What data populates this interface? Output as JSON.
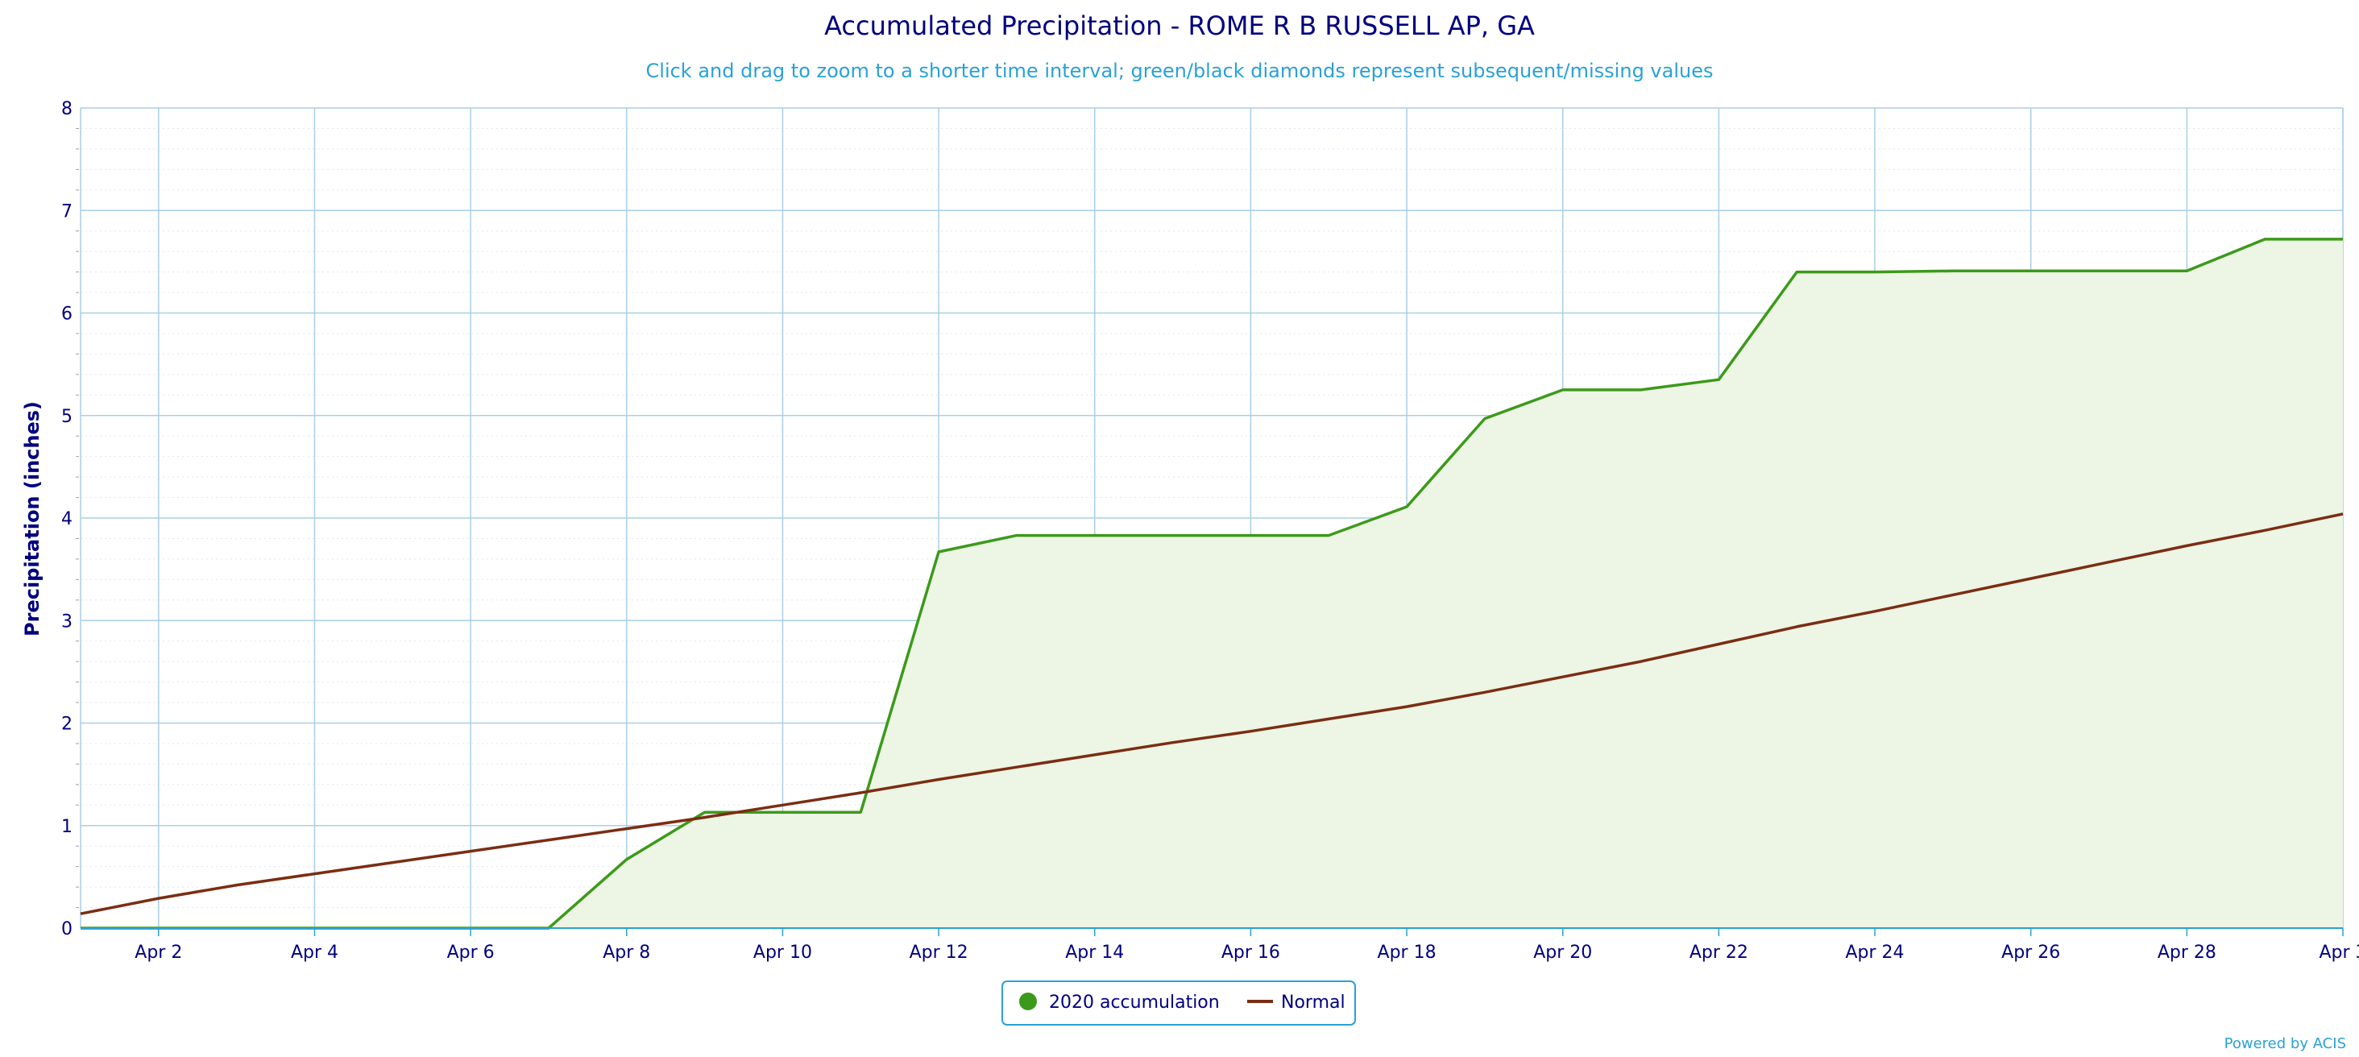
{
  "chart_data": {
    "type": "area",
    "title": "Accumulated Precipitation - ROME R B RUSSELL AP, GA",
    "subtitle": "Click and drag to zoom to a shorter time interval; green/black diamonds represent subsequent/missing values",
    "xlabel": "",
    "ylabel": "Precipitation (inches)",
    "ylim": [
      0,
      8
    ],
    "yticks": [
      "0",
      "1",
      "2",
      "3",
      "4",
      "5",
      "6",
      "7",
      "8"
    ],
    "xlim": [
      1,
      30
    ],
    "xticks": [
      {
        "day": 2,
        "label": "Apr 2"
      },
      {
        "day": 4,
        "label": "Apr 4"
      },
      {
        "day": 6,
        "label": "Apr 6"
      },
      {
        "day": 8,
        "label": "Apr 8"
      },
      {
        "day": 10,
        "label": "Apr 10"
      },
      {
        "day": 12,
        "label": "Apr 12"
      },
      {
        "day": 14,
        "label": "Apr 14"
      },
      {
        "day": 16,
        "label": "Apr 16"
      },
      {
        "day": 18,
        "label": "Apr 18"
      },
      {
        "day": 20,
        "label": "Apr 20"
      },
      {
        "day": 22,
        "label": "Apr 22"
      },
      {
        "day": 24,
        "label": "Apr 24"
      },
      {
        "day": 26,
        "label": "Apr 26"
      },
      {
        "day": 28,
        "label": "Apr 28"
      },
      {
        "day": 30,
        "label": "Apr 3"
      }
    ],
    "grid": true,
    "legend_position": "bottom-center",
    "series": [
      {
        "name": "2020 accumulation",
        "color": "#3c9a1a",
        "fill": "#edf5e5",
        "x": [
          1,
          2,
          3,
          4,
          5,
          6,
          7,
          8,
          9,
          10,
          11,
          12,
          13,
          14,
          15,
          16,
          17,
          18,
          19,
          20,
          21,
          22,
          23,
          24,
          25,
          26,
          27,
          28,
          29,
          30
        ],
        "values": [
          0,
          0,
          0,
          0,
          0,
          0,
          0,
          0.67,
          1.13,
          1.13,
          1.13,
          3.67,
          3.83,
          3.83,
          3.83,
          3.83,
          3.83,
          4.11,
          4.97,
          5.25,
          5.25,
          5.35,
          6.4,
          6.4,
          6.41,
          6.41,
          6.41,
          6.41,
          6.72,
          6.72
        ]
      },
      {
        "name": "Normal",
        "color": "#7b2d12",
        "x": [
          1,
          2,
          3,
          4,
          5,
          6,
          7,
          8,
          9,
          10,
          11,
          12,
          13,
          14,
          15,
          16,
          17,
          18,
          19,
          20,
          21,
          22,
          23,
          24,
          25,
          26,
          27,
          28,
          29,
          30
        ],
        "values": [
          0.14,
          0.29,
          0.42,
          0.53,
          0.64,
          0.75,
          0.86,
          0.97,
          1.08,
          1.2,
          1.32,
          1.45,
          1.57,
          1.69,
          1.81,
          1.92,
          2.04,
          2.16,
          2.3,
          2.45,
          2.6,
          2.77,
          2.94,
          3.09,
          3.25,
          3.41,
          3.57,
          3.73,
          3.88,
          4.04
        ]
      }
    ]
  },
  "legend": {
    "items": [
      {
        "label": "2020 accumulation",
        "symbol": "circle",
        "color": "#3c9a1a"
      },
      {
        "label": "Normal",
        "symbol": "line",
        "color": "#7b2d12"
      }
    ]
  },
  "credit": "Powered by ACIS"
}
